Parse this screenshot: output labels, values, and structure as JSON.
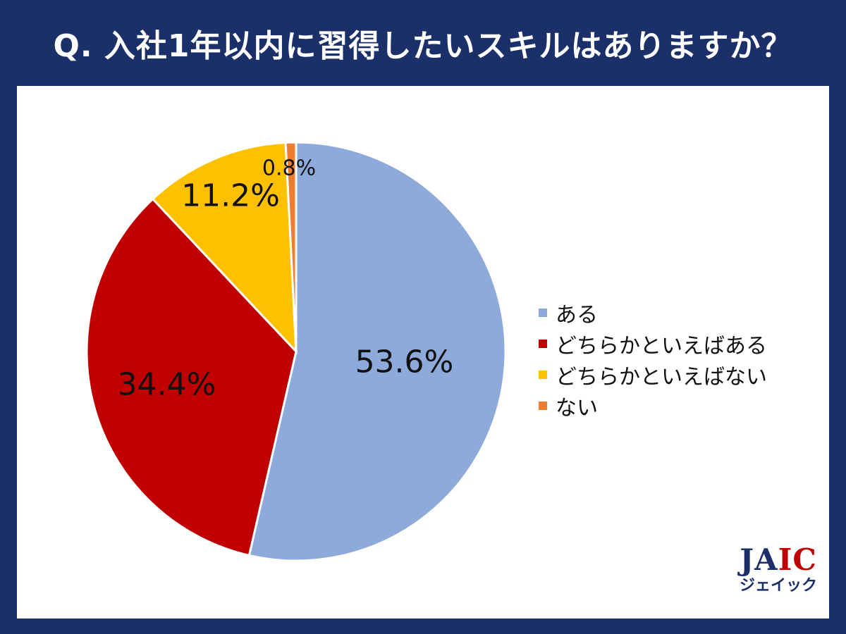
{
  "title": "Q.  入社1年以内に習得したいスキルはありますか？",
  "chart_data": {
    "type": "pie",
    "title": "Q.  入社1年以内に習得したいスキルはありますか？",
    "slices": [
      {
        "name": "ある",
        "value": 53.6,
        "label": "53.6%",
        "color": "#8eaadb"
      },
      {
        "name": "どちらかといえばある",
        "value": 34.4,
        "label": "34.4%",
        "color": "#c00000"
      },
      {
        "name": "どちらかといえばない",
        "value": 11.2,
        "label": "11.2%",
        "color": "#ffc000"
      },
      {
        "name": "ない",
        "value": 0.8,
        "label": "0.8%",
        "color": "#ed7d31"
      }
    ],
    "legend_placement": "right"
  },
  "logo": {
    "text_main_1": "J",
    "text_main_2": "A",
    "text_main_3": "IC",
    "text_sub": "ジェイック"
  }
}
